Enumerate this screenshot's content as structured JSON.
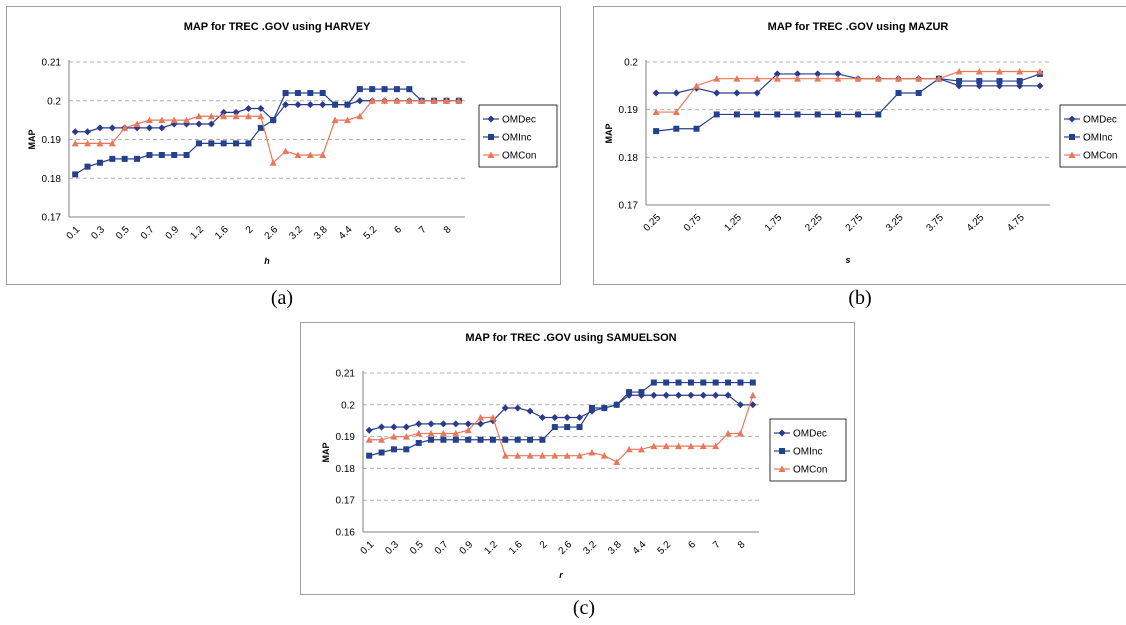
{
  "captions": [
    "(a)",
    "(b)",
    "(c)"
  ],
  "colors": {
    "OMDec": "#2a3a8c",
    "OMInc": "#24408e",
    "OMCon": "#e8785a",
    "grid": "#b0b0b0"
  },
  "chart_data": [
    {
      "type": "line",
      "title": "MAP for TREC .GOV using HARVEY",
      "xlabel": "h",
      "ylabel": "MAP",
      "ylim": [
        0.17,
        0.21
      ],
      "yticks": [
        "0.17",
        "0.18",
        "0.19",
        "0.2",
        "0.21"
      ],
      "x": [
        "0.1",
        "0.2",
        "0.3",
        "0.4",
        "0.5",
        "0.6",
        "0.7",
        "0.8",
        "0.9",
        "1",
        "1.2",
        "1.4",
        "1.6",
        "1.8",
        "2",
        "2.2",
        "2.6",
        "2.8",
        "3.2",
        "3.4",
        "3.8",
        "4",
        "4.4",
        "4.8",
        "5.2",
        "5.6",
        "6",
        "6.5",
        "7",
        "7.5",
        "8",
        "8.5"
      ],
      "xticks": [
        "0.1",
        "0.3",
        "0.5",
        "0.7",
        "0.9",
        "1.2",
        "1.6",
        "2",
        "2.6",
        "3.2",
        "3.8",
        "4.4",
        "5.2",
        "6",
        "7",
        "8"
      ],
      "grid": true,
      "legend": "right",
      "series": [
        {
          "name": "OMDec",
          "marker": "diamond",
          "values": [
            0.192,
            0.192,
            0.193,
            0.193,
            0.193,
            0.193,
            0.193,
            0.193,
            0.194,
            0.194,
            0.194,
            0.194,
            0.197,
            0.197,
            0.198,
            0.198,
            0.195,
            0.199,
            0.199,
            0.199,
            0.199,
            0.199,
            0.199,
            0.2,
            0.2,
            0.2,
            0.2,
            0.2,
            0.2,
            0.2,
            0.2,
            0.2
          ]
        },
        {
          "name": "OMInc",
          "marker": "square",
          "values": [
            0.181,
            0.183,
            0.184,
            0.185,
            0.185,
            0.185,
            0.186,
            0.186,
            0.186,
            0.186,
            0.189,
            0.189,
            0.189,
            0.189,
            0.189,
            0.193,
            0.195,
            0.202,
            0.202,
            0.202,
            0.202,
            0.199,
            0.199,
            0.203,
            0.203,
            0.203,
            0.203,
            0.203,
            0.2,
            0.2,
            0.2,
            0.2
          ]
        },
        {
          "name": "OMCon",
          "marker": "triangle",
          "values": [
            0.189,
            0.189,
            0.189,
            0.189,
            0.193,
            0.194,
            0.195,
            0.195,
            0.195,
            0.195,
            0.196,
            0.196,
            0.196,
            0.196,
            0.196,
            0.196,
            0.184,
            0.187,
            0.186,
            0.186,
            0.186,
            0.195,
            0.195,
            0.196,
            0.2,
            0.2,
            0.2,
            0.2,
            0.2,
            0.2,
            0.2,
            0.2
          ]
        }
      ]
    },
    {
      "type": "line",
      "title": "MAP for TREC .GOV using MAZUR",
      "xlabel": "s",
      "ylabel": "MAP",
      "ylim": [
        0.17,
        0.2
      ],
      "yticks": [
        "0.17",
        "0.18",
        "0.19",
        "0.2"
      ],
      "x": [
        "0.25",
        "0.5",
        "0.75",
        "1",
        "1.25",
        "1.5",
        "1.75",
        "2",
        "2.25",
        "2.5",
        "2.75",
        "3",
        "3.25",
        "3.5",
        "3.75",
        "4",
        "4.25",
        "4.5",
        "4.75",
        "5"
      ],
      "xticks": [
        "0.25",
        "0.75",
        "1.25",
        "1.75",
        "2.25",
        "2.75",
        "3.25",
        "3.75",
        "4.25",
        "4.75"
      ],
      "grid": true,
      "legend": "right",
      "series": [
        {
          "name": "OMDec",
          "marker": "diamond",
          "values": [
            0.1935,
            0.1935,
            0.1945,
            0.1935,
            0.1935,
            0.1935,
            0.1975,
            0.1975,
            0.1975,
            0.1975,
            0.1965,
            0.1965,
            0.1965,
            0.1965,
            0.1965,
            0.195,
            0.195,
            0.195,
            0.195,
            0.195
          ]
        },
        {
          "name": "OMInc",
          "marker": "square",
          "values": [
            0.1855,
            0.186,
            0.186,
            0.189,
            0.189,
            0.189,
            0.189,
            0.189,
            0.189,
            0.189,
            0.189,
            0.189,
            0.1935,
            0.1935,
            0.1965,
            0.196,
            0.196,
            0.196,
            0.196,
            0.1975
          ]
        },
        {
          "name": "OMCon",
          "marker": "triangle",
          "values": [
            0.1895,
            0.1895,
            0.195,
            0.1965,
            0.1965,
            0.1965,
            0.1965,
            0.1965,
            0.1965,
            0.1965,
            0.1965,
            0.1965,
            0.1965,
            0.1965,
            0.1965,
            0.198,
            0.198,
            0.198,
            0.198,
            0.198
          ]
        }
      ]
    },
    {
      "type": "line",
      "title": "MAP for TREC .GOV using SAMUELSON",
      "xlabel": "r",
      "ylabel": "MAP",
      "ylim": [
        0.16,
        0.21
      ],
      "yticks": [
        "0.16",
        "0.17",
        "0.18",
        "0.19",
        "0.2",
        "0.21"
      ],
      "x": [
        "0.1",
        "0.2",
        "0.3",
        "0.4",
        "0.5",
        "0.6",
        "0.7",
        "0.8",
        "0.9",
        "1",
        "1.2",
        "1.4",
        "1.6",
        "1.8",
        "2",
        "2.2",
        "2.6",
        "2.8",
        "3.2",
        "3.4",
        "3.8",
        "4",
        "4.4",
        "4.8",
        "5.2",
        "5.6",
        "6",
        "6.5",
        "7",
        "7.5",
        "8",
        "8.5"
      ],
      "xticks": [
        "0.1",
        "0.3",
        "0.5",
        "0.7",
        "0.9",
        "1.2",
        "1.6",
        "2",
        "2.6",
        "3.2",
        "3.8",
        "4.4",
        "5.2",
        "6",
        "7",
        "8"
      ],
      "grid": true,
      "legend": "right",
      "series": [
        {
          "name": "OMDec",
          "marker": "diamond",
          "values": [
            0.192,
            0.193,
            0.193,
            0.193,
            0.194,
            0.194,
            0.194,
            0.194,
            0.194,
            0.194,
            0.195,
            0.199,
            0.199,
            0.198,
            0.196,
            0.196,
            0.196,
            0.196,
            0.198,
            0.199,
            0.2,
            0.203,
            0.203,
            0.203,
            0.203,
            0.203,
            0.203,
            0.203,
            0.203,
            0.203,
            0.2,
            0.2
          ]
        },
        {
          "name": "OMInc",
          "marker": "square",
          "values": [
            0.184,
            0.185,
            0.186,
            0.186,
            0.188,
            0.189,
            0.189,
            0.189,
            0.189,
            0.189,
            0.189,
            0.189,
            0.189,
            0.189,
            0.189,
            0.193,
            0.193,
            0.193,
            0.199,
            0.199,
            0.2,
            0.204,
            0.204,
            0.207,
            0.207,
            0.207,
            0.207,
            0.207,
            0.207,
            0.207,
            0.207,
            0.207
          ]
        },
        {
          "name": "OMCon",
          "marker": "triangle",
          "values": [
            0.189,
            0.189,
            0.19,
            0.19,
            0.191,
            0.191,
            0.191,
            0.191,
            0.192,
            0.196,
            0.196,
            0.184,
            0.184,
            0.184,
            0.184,
            0.184,
            0.184,
            0.184,
            0.185,
            0.184,
            0.182,
            0.186,
            0.186,
            0.187,
            0.187,
            0.187,
            0.187,
            0.187,
            0.187,
            0.191,
            0.191,
            0.203
          ]
        }
      ]
    }
  ]
}
